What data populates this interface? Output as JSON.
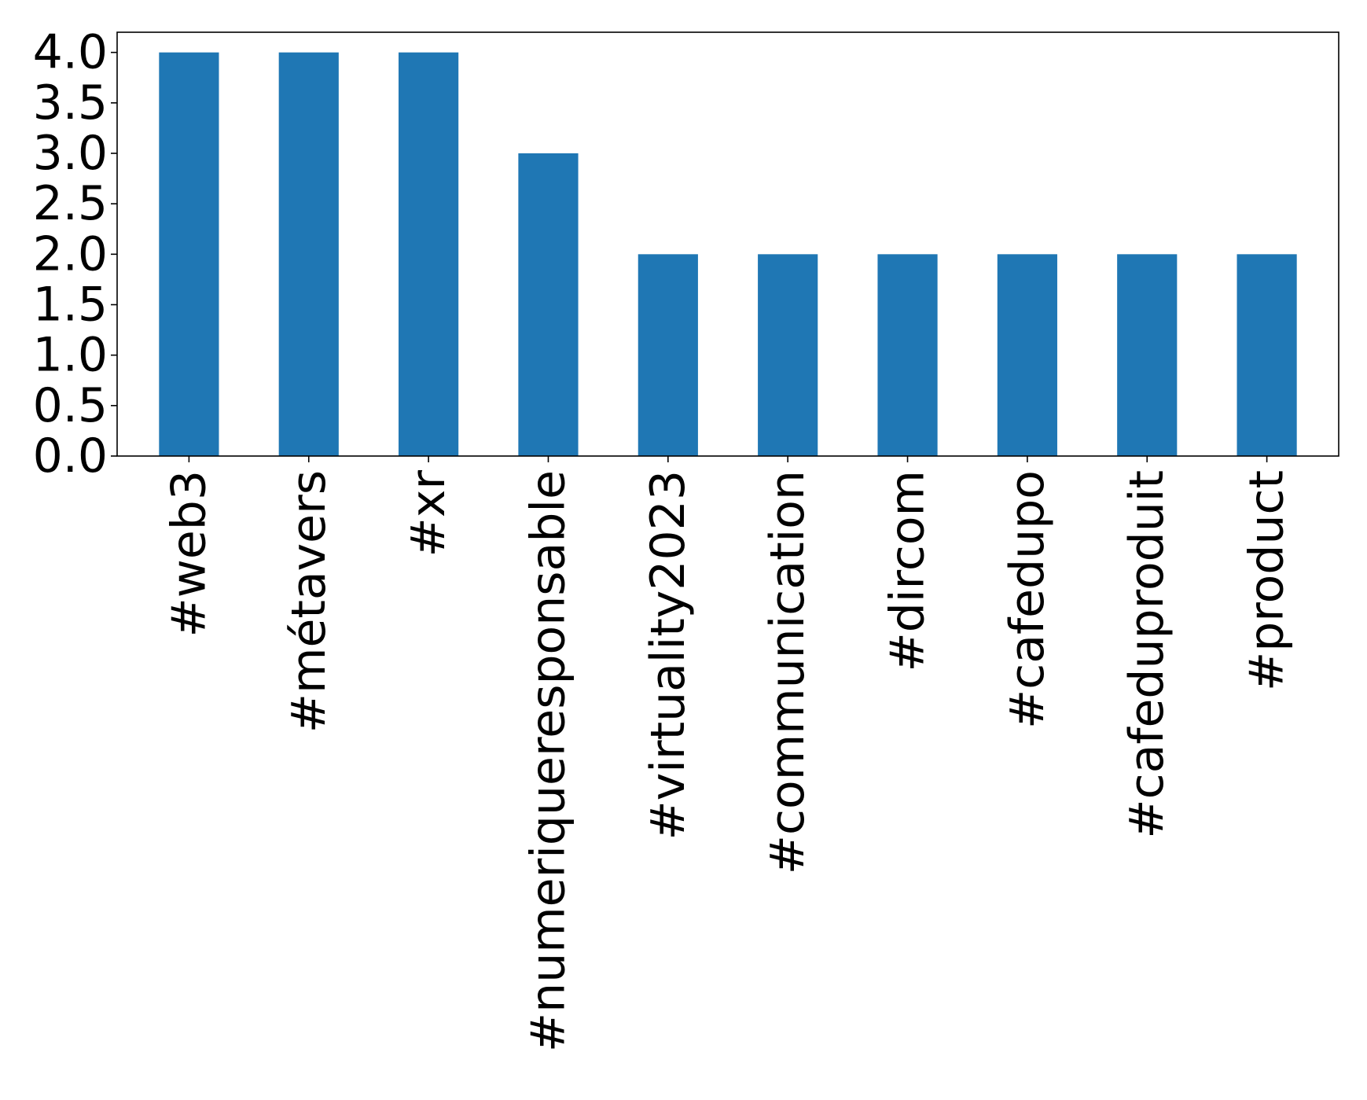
{
  "chart_data": {
    "type": "bar",
    "title": "",
    "xlabel": "",
    "ylabel": "",
    "categories": [
      "#web3",
      "#métavers",
      "#xr",
      "#numeriqueresponsable",
      "#virtuality2023",
      "#communication",
      "#dircom",
      "#cafedupo",
      "#cafeduproduit",
      "#product"
    ],
    "values": [
      4,
      4,
      4,
      3,
      2,
      2,
      2,
      2,
      2,
      2
    ],
    "ylim": [
      0,
      4.2
    ],
    "yticks": [
      "0.0",
      "0.5",
      "1.0",
      "1.5",
      "2.0",
      "2.5",
      "3.0",
      "3.5",
      "4.0"
    ],
    "grid": false,
    "legend": "none",
    "bar_color": "#1f77b4"
  }
}
